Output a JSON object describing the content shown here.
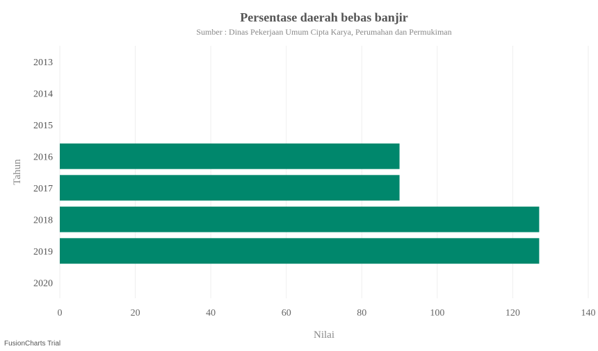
{
  "chart_data": {
    "type": "bar",
    "orientation": "horizontal",
    "title": "Persentase daerah bebas banjir",
    "subtitle": "Sumber : Dinas Pekerjaan Umum Cipta Karya, Perumahan dan Permukiman",
    "xlabel": "Nilai",
    "ylabel": "Tahun",
    "categories": [
      "2013",
      "2014",
      "2015",
      "2016",
      "2017",
      "2018",
      "2019",
      "2020"
    ],
    "values": [
      null,
      null,
      null,
      90,
      90,
      127,
      127,
      null
    ],
    "xlim": [
      0,
      140
    ],
    "ticks": [
      "0",
      "20",
      "40",
      "60",
      "80",
      "100",
      "120",
      "140"
    ],
    "grid": true,
    "bar_color": "#00876C"
  },
  "watermark": "FusionCharts Trial"
}
